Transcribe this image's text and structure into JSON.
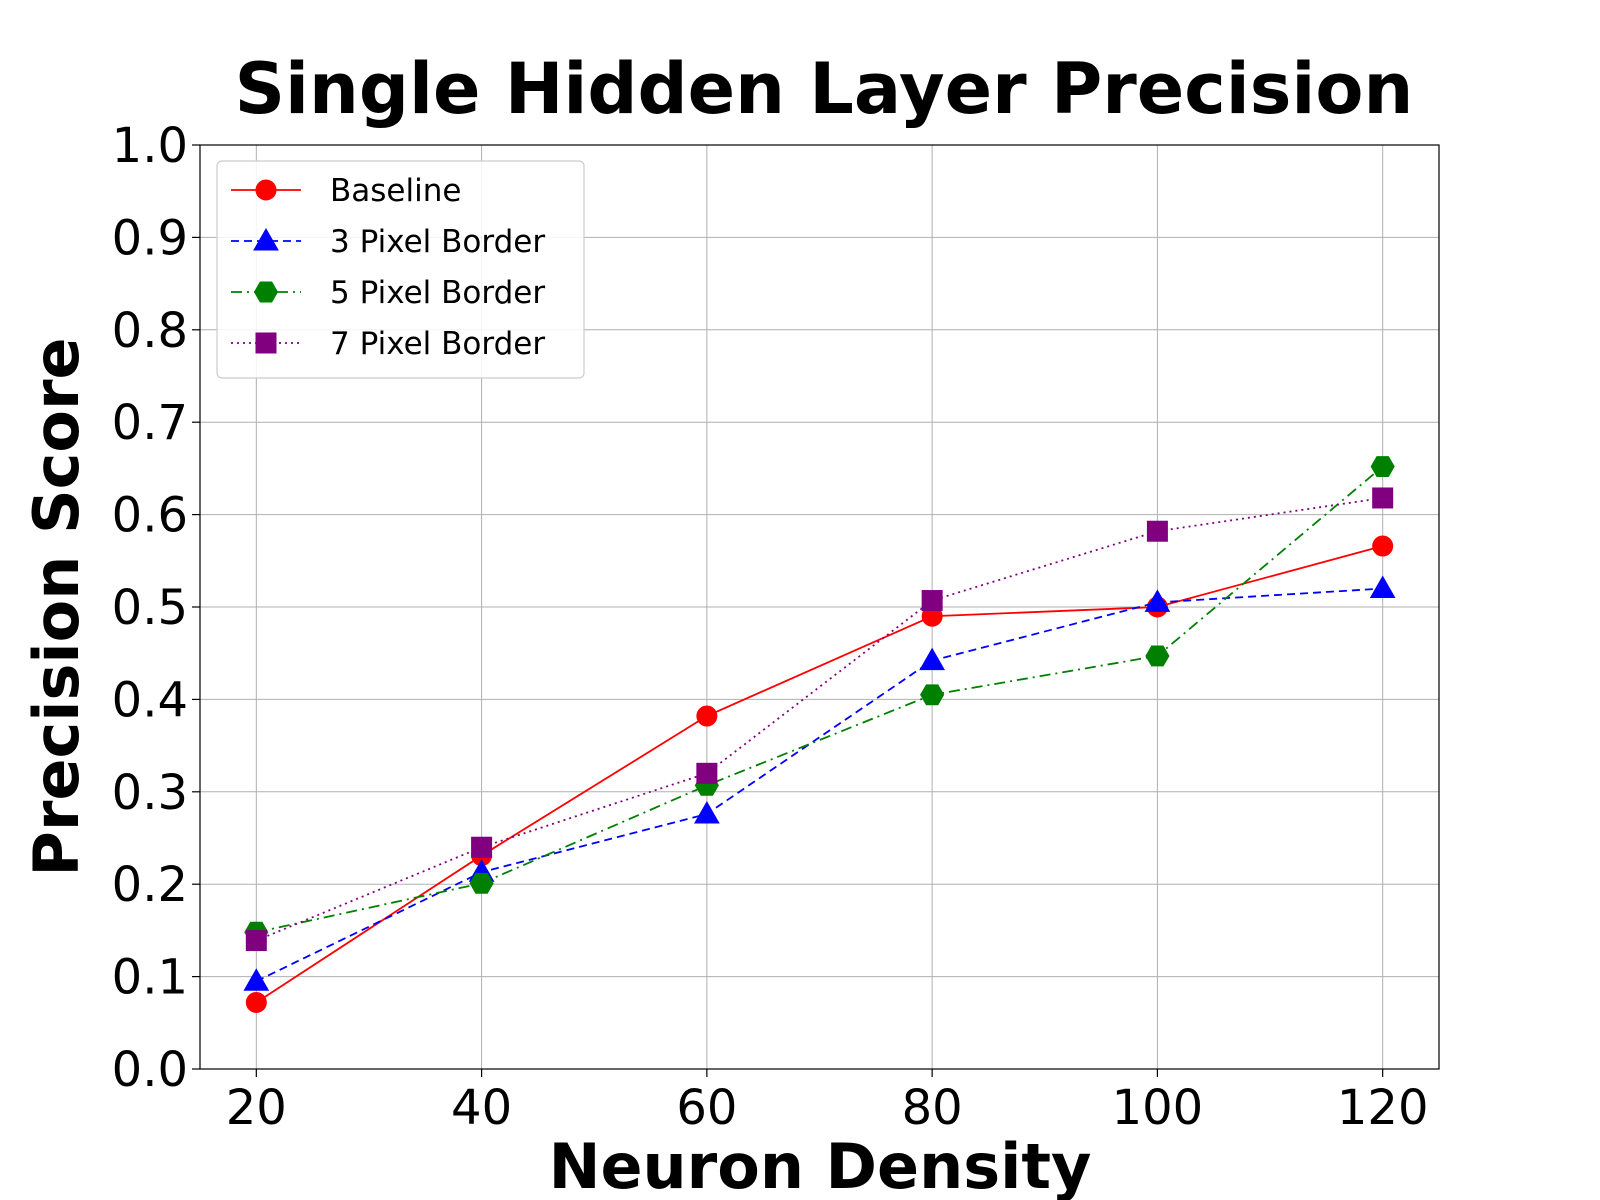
{
  "chart_data": {
    "type": "line",
    "title": "Single Hidden Layer Precision",
    "xlabel": "Neuron Density",
    "ylabel": "Precision Score",
    "x": [
      20,
      40,
      60,
      80,
      100,
      120
    ],
    "xticks": [
      "20",
      "40",
      "60",
      "80",
      "100",
      "120"
    ],
    "yticks": [
      "0.0",
      "0.1",
      "0.2",
      "0.3",
      "0.4",
      "0.5",
      "0.6",
      "0.7",
      "0.8",
      "0.9",
      "1.0"
    ],
    "xlim": [
      15,
      125
    ],
    "ylim": [
      0,
      1
    ],
    "grid": true,
    "legend_position": "top-left",
    "series": [
      {
        "name": "Baseline",
        "values": [
          0.072,
          0.231,
          0.382,
          0.49,
          0.5,
          0.566
        ],
        "color": "#ff0000",
        "marker": "circle",
        "linestyle": "solid"
      },
      {
        "name": "3 Pixel Border",
        "values": [
          0.095,
          0.213,
          0.276,
          0.442,
          0.505,
          0.52
        ],
        "color": "#0000ff",
        "marker": "triangle",
        "linestyle": "dashed"
      },
      {
        "name": "5 Pixel Border",
        "values": [
          0.148,
          0.201,
          0.307,
          0.405,
          0.447,
          0.652
        ],
        "color": "#008000",
        "marker": "hexagon",
        "linestyle": "dashdot"
      },
      {
        "name": "7 Pixel Border",
        "values": [
          0.139,
          0.24,
          0.32,
          0.507,
          0.582,
          0.618
        ],
        "color": "#800080",
        "marker": "square",
        "linestyle": "dotted"
      }
    ]
  }
}
